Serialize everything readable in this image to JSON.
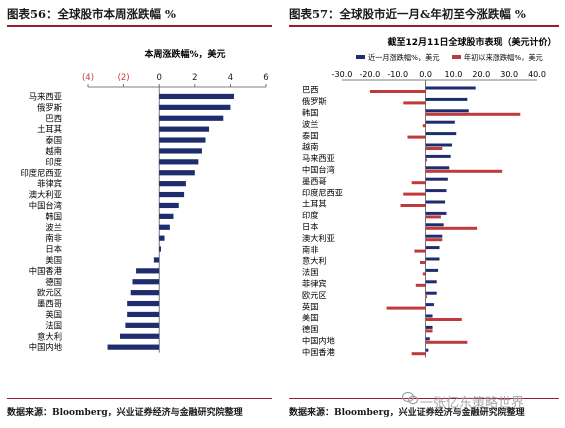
{
  "left_panel": {
    "title": "图表56：全球股市本周涨跌幅 %",
    "source": "数据来源：Bloomberg，兴业证券经济与金融研究院整理"
  },
  "right_panel": {
    "title": "图表57：全球股市近一月&年初至今涨跌幅 %",
    "source": "数据来源：Bloomberg，兴业证券经济与金融研究院整理"
  },
  "watermark": {
    "text": "一张亿东策略世界"
  },
  "colors": {
    "navy": "#1f2d6e",
    "red": "#c0393b",
    "accent": "#9a1e2d",
    "negative_tick": "#c0393b"
  },
  "chart_data": [
    {
      "type": "bar",
      "orientation": "horizontal",
      "title": "本周涨跌幅%，美元",
      "ticks": [
        -4,
        -2,
        0,
        2,
        4,
        6
      ],
      "tick_labels": [
        "(4)",
        "(2)",
        "0",
        "2",
        "4",
        "6"
      ],
      "xlim": [
        -4,
        6
      ],
      "categories": [
        "马来西亚",
        "俄罗斯",
        "巴西",
        "土耳其",
        "泰国",
        "越南",
        "印度",
        "印度尼西亚",
        "菲律宾",
        "澳大利亚",
        "中国台湾",
        "韩国",
        "波兰",
        "南非",
        "日本",
        "美国",
        "中国香港",
        "德国",
        "欧元区",
        "墨西哥",
        "英国",
        "法国",
        "意大利",
        "中国内地"
      ],
      "values": [
        4.2,
        4.0,
        3.6,
        2.8,
        2.6,
        2.4,
        2.2,
        2.0,
        1.5,
        1.4,
        1.1,
        0.8,
        0.6,
        0.3,
        0.1,
        -0.3,
        -1.3,
        -1.5,
        -1.6,
        -1.8,
        -1.8,
        -1.9,
        -2.2,
        -2.9
      ]
    },
    {
      "type": "bar",
      "orientation": "horizontal",
      "title": "截至12月11日全球股市表现（美元计价）",
      "ticks": [
        -30,
        -20,
        -10,
        0,
        10,
        20,
        30,
        40
      ],
      "tick_labels": [
        "-30.0",
        "-20.0",
        "-10.0",
        "0.0",
        "10.0",
        "20.0",
        "30.0",
        "40.0"
      ],
      "xlim": [
        -30,
        40
      ],
      "categories": [
        "巴西",
        "俄罗斯",
        "韩国",
        "波兰",
        "泰国",
        "越南",
        "马来西亚",
        "中国台湾",
        "墨西哥",
        "印度尼西亚",
        "土耳其",
        "印度",
        "日本",
        "澳大利亚",
        "南非",
        "意大利",
        "法国",
        "菲律宾",
        "欧元区",
        "英国",
        "美国",
        "德国",
        "中国内地",
        "中国香港"
      ],
      "series": [
        {
          "name": "近一月涨跌幅%，美元",
          "values": [
            18.0,
            15.0,
            15.5,
            10.5,
            11.0,
            9.5,
            9.0,
            8.5,
            8.0,
            7.5,
            7.0,
            7.5,
            6.5,
            6.0,
            5.0,
            5.0,
            4.5,
            4.0,
            4.0,
            3.0,
            2.5,
            2.5,
            1.5,
            1.0
          ]
        },
        {
          "name": "年初以来涨跌幅%，美元",
          "values": [
            -20.0,
            -8.0,
            34.0,
            -1.0,
            -6.5,
            6.0,
            0.5,
            27.5,
            -5.0,
            -8.0,
            -9.0,
            5.5,
            18.5,
            6.0,
            -4.0,
            -2.0,
            -1.0,
            -3.5,
            0.5,
            -14.0,
            13.0,
            2.5,
            15.0,
            -5.0
          ]
        }
      ]
    }
  ]
}
